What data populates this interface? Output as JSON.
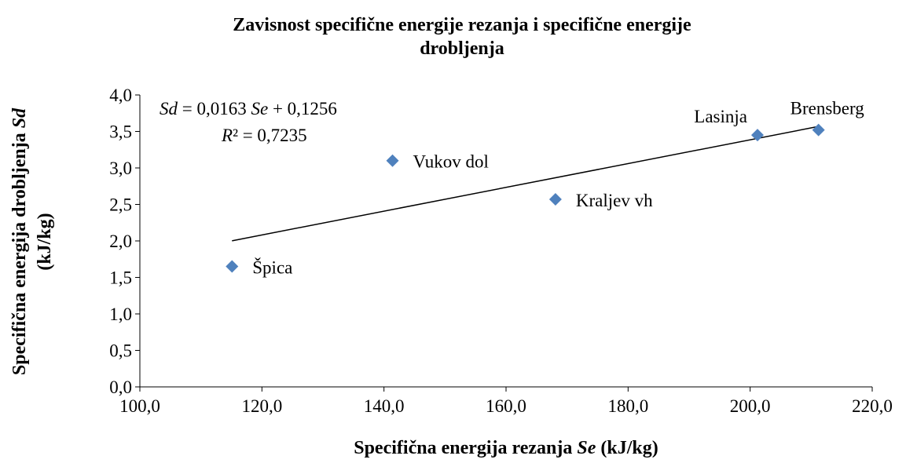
{
  "chart_data": {
    "type": "scatter",
    "title": [
      "Zavisnost specifične energije rezanja i specifične energije",
      "drobljenja"
    ],
    "xlabel": [
      "Specifična energija rezanja ",
      "Se",
      " (kJ/kg)"
    ],
    "ylabel": [
      [
        "Specifična energija drobljenja ",
        "Sd"
      ],
      [
        "(kJ/kg)"
      ]
    ],
    "point_labels": [
      "Špica",
      "Vukov dol",
      "Kraljev vh",
      "Lasinja",
      "Brensberg"
    ],
    "x": [
      115.1,
      141.4,
      168.1,
      201.2,
      211.2
    ],
    "values": [
      1.65,
      3.1,
      2.57,
      3.45,
      3.52
    ],
    "color": "#4f81bd",
    "xlim": [
      100,
      220
    ],
    "xticks": [
      {
        "value": 100,
        "label": "100,0"
      },
      {
        "value": 120,
        "label": "120,0"
      },
      {
        "value": 140,
        "label": "140,0"
      },
      {
        "value": 160,
        "label": "160,0"
      },
      {
        "value": 180,
        "label": "180,0"
      },
      {
        "value": 200,
        "label": "200,0"
      },
      {
        "value": 220,
        "label": "220,0"
      }
    ],
    "ylim": [
      0,
      4
    ],
    "yticks": [
      {
        "value": 0,
        "label": "0,0"
      },
      {
        "value": 0.5,
        "label": "0,5"
      },
      {
        "value": 1,
        "label": "1,0"
      },
      {
        "value": 1.5,
        "label": "1,5"
      },
      {
        "value": 2,
        "label": "2,0"
      },
      {
        "value": 2.5,
        "label": "2,5"
      },
      {
        "value": 3,
        "label": "3,0"
      },
      {
        "value": 3.5,
        "label": "3,5"
      },
      {
        "value": 4,
        "label": "4,0"
      }
    ],
    "trendline": {
      "slope": 0.0163,
      "intercept": 0.1256,
      "equation": [
        "Sd",
        " = 0,0163 ",
        "Se",
        " + 0,1256"
      ],
      "r2": [
        "R",
        "² = 0,7235"
      ]
    },
    "grid": false
  }
}
